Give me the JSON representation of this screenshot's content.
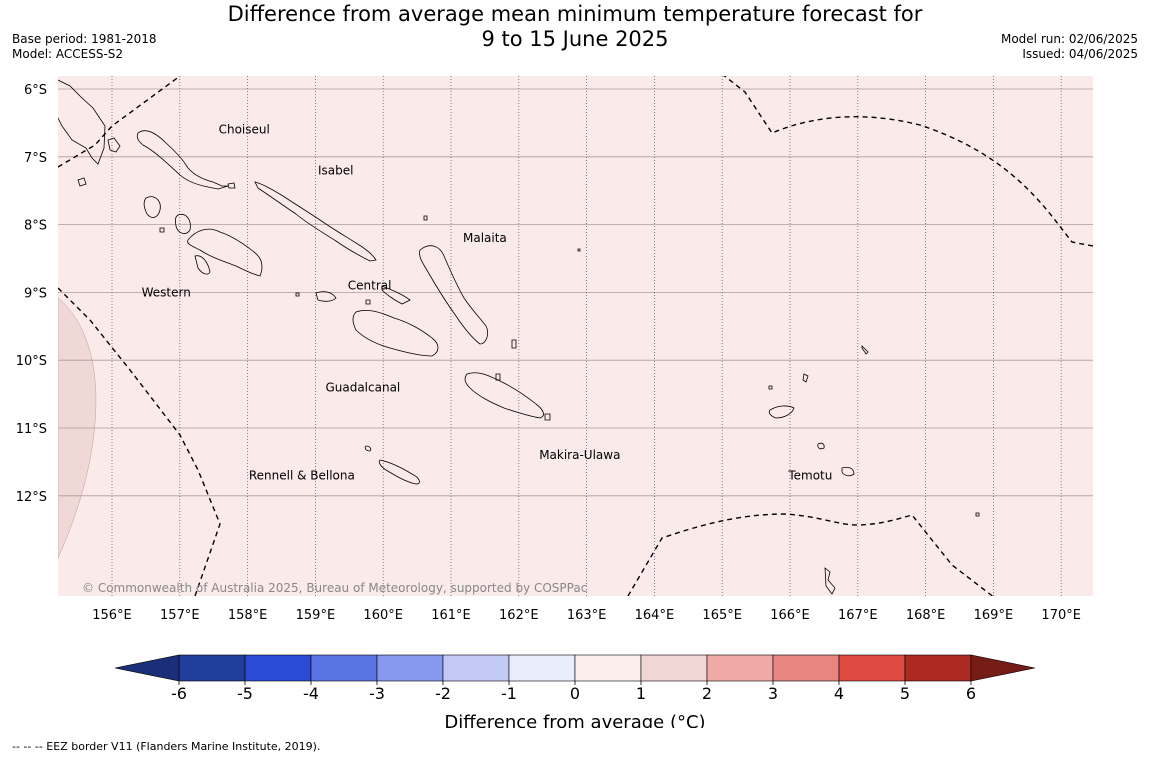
{
  "header": {
    "title_line1": "Difference from average mean minimum temperature forecast for",
    "title_line2": "9 to 15 June 2025",
    "base_period": "Base period: 1981-2018",
    "model": "Model: ACCESS-S2",
    "model_run": "Model run: 02/06/2025",
    "issued": "Issued: 04/06/2025"
  },
  "map": {
    "lat_labels": [
      "6°S",
      "7°S",
      "8°S",
      "9°S",
      "10°S",
      "11°S",
      "12°S"
    ],
    "lon_labels": [
      "156°E",
      "157°E",
      "158°E",
      "159°E",
      "160°E",
      "161°E",
      "162°E",
      "163°E",
      "164°E",
      "165°E",
      "166°E",
      "167°E",
      "168°E",
      "169°E",
      "170°E"
    ],
    "regions": [
      {
        "name": "Choiseul",
        "lon": 157.95,
        "lat": -6.6
      },
      {
        "name": "Isabel",
        "lon": 159.3,
        "lat": -7.2
      },
      {
        "name": "Malaita",
        "lon": 161.5,
        "lat": -8.2
      },
      {
        "name": "Western",
        "lon": 156.8,
        "lat": -9.0
      },
      {
        "name": "Central",
        "lon": 159.8,
        "lat": -8.9
      },
      {
        "name": "Guadalcanal",
        "lon": 159.7,
        "lat": -10.4
      },
      {
        "name": "Makira-Ulawa",
        "lon": 162.9,
        "lat": -11.4
      },
      {
        "name": "Temotu",
        "lon": 166.3,
        "lat": -11.7
      },
      {
        "name": "Rennell & Bellona",
        "lon": 158.8,
        "lat": -11.7
      }
    ],
    "copyright": "© Commonwealth of Australia 2025, Bureau of Meteorology, supported by COSPPac",
    "background_color": "#fbeaea",
    "anomaly_patch_color": "#f0d8d6"
  },
  "colorbar": {
    "ticks": [
      "-6",
      "-5",
      "-4",
      "-3",
      "-2",
      "-1",
      "0",
      "1",
      "2",
      "3",
      "4",
      "5",
      "6"
    ],
    "colors": [
      "#223e9c",
      "#2b4ad6",
      "#5a74e4",
      "#8799ec",
      "#c1c9f4",
      "#e9edfb",
      "#fdeeee",
      "#f0d7d5",
      "#efaaa8",
      "#e8857e",
      "#de4b41",
      "#ac2a22"
    ],
    "under_color": "#1a2f78",
    "over_color": "#761c17",
    "label": "Difference from average (°C)"
  },
  "footer": {
    "legend_text": "--  --  -- EEZ border V11 (Flanders Marine Institute, 2019)."
  }
}
